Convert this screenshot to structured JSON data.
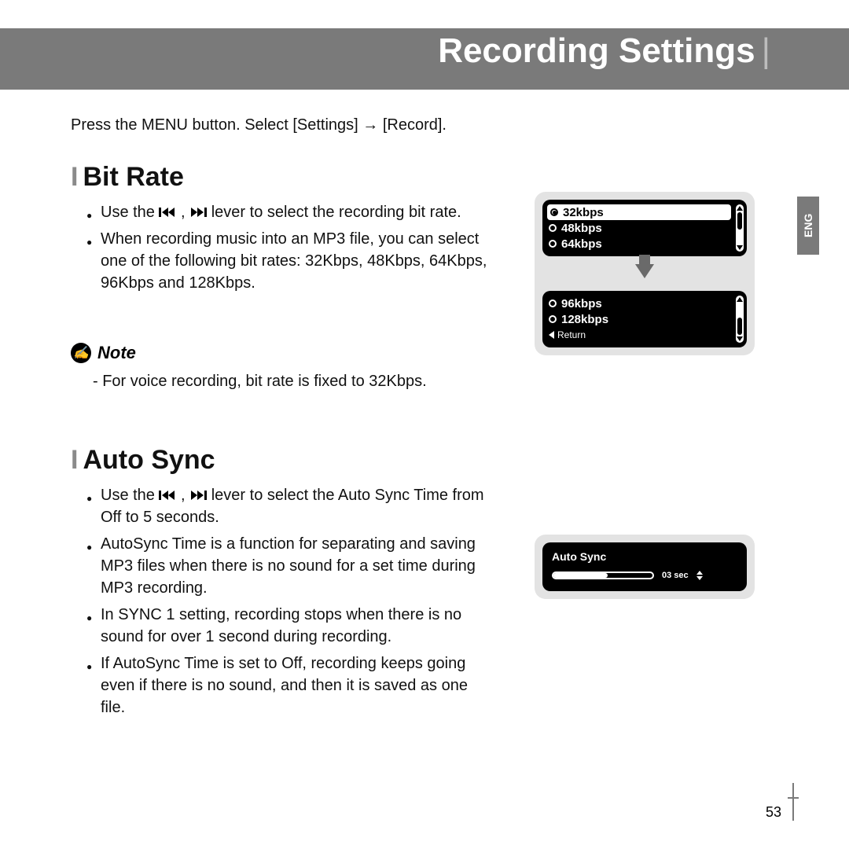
{
  "page": {
    "title": "Recording Settings",
    "intro": "Press the MENU button. Select [Settings] → [Record].",
    "lang_tab": "ENG",
    "page_number": "53"
  },
  "bitrate": {
    "heading": "Bit Rate",
    "line1_a": "Use the ",
    "line1_b": " lever to select the recording bit rate.",
    "line2": "When recording music into an MP3 file, you can select one of the following bit rates: 32Kbps, 48Kbps, 64Kbps, 96Kbps and 128Kbps.",
    "note_label": "Note",
    "note_text": "- For voice recording, bit rate is fixed to 32Kbps.",
    "screen1": {
      "opt1": "32kbps",
      "opt2": "48kbps",
      "opt3": "64kbps"
    },
    "screen2": {
      "opt1": "96kbps",
      "opt2": "128kbps",
      "return": "Return"
    }
  },
  "autosync": {
    "heading": "Auto Sync",
    "line1_a": "Use the ",
    "line1_b": " lever to select the Auto Sync Time from Off to 5 seconds.",
    "line2": "AutoSync Time is a function for separating and saving MP3 files when there is no sound for a set time during MP3 recording.",
    "line3": "In SYNC 1 setting, recording stops when there is no sound for over 1 second during recording.",
    "line4": "If AutoSync Time is set to Off, recording keeps going even if there is no sound, and then it is saved as one file.",
    "screen": {
      "title": "Auto Sync",
      "value": "03 sec",
      "fill_percent": 55
    }
  },
  "colors": {
    "band": "#7a7a7a",
    "device_bg": "#e3e3e3",
    "lcd_bg": "#000000",
    "lcd_fg": "#ffffff"
  }
}
